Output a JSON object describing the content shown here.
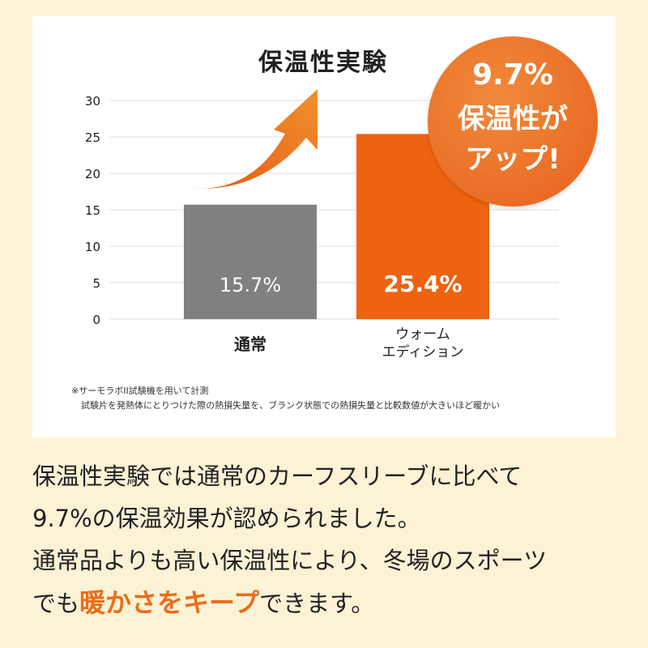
{
  "chart_data": {
    "type": "bar",
    "title": "保温性実験",
    "categories": [
      "通常",
      "ウォーム\nエディション"
    ],
    "values": [
      15.7,
      25.4
    ],
    "data_labels": [
      "15.7%",
      "25.4%"
    ],
    "colors": [
      "#808080",
      "#ee6310"
    ],
    "ylim": [
      0,
      30
    ],
    "yticks": [
      0,
      5,
      10,
      15,
      20,
      25,
      30
    ],
    "grid": true,
    "xlabel": "",
    "ylabel": ""
  },
  "callout": {
    "line1": "9.7%",
    "line2": "保温性が",
    "line3": "アップ!"
  },
  "footnote": {
    "line1": "※サーモラボII試験機を用いて計測",
    "line2": "試験片を発熱体にとりつけた際の熱損失量を、ブランク状態での熱損失量と比較数値が大きいほど暖かい"
  },
  "description": {
    "line1": "保温性実験では通常のカーフスリーブに比べて",
    "line2": "9.7%の保温効果が認められました。",
    "line3": "通常品よりも高い保温性により、冬場のスポーツ",
    "line4_pre": "でも",
    "line4_highlight": "暖かさをキープ",
    "line4_post": "できます。"
  }
}
